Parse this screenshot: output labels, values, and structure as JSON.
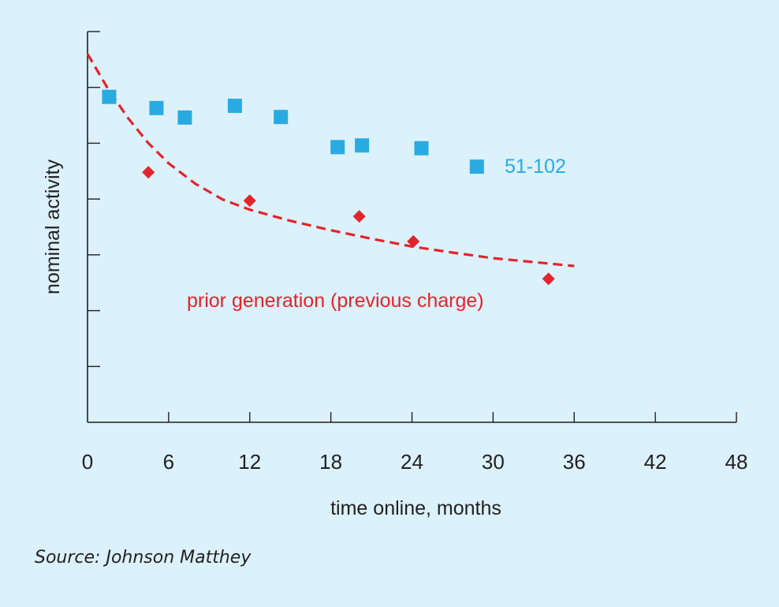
{
  "chart_data": {
    "type": "scatter",
    "title": "",
    "xlabel": "time online, months",
    "ylabel": "nominal activity",
    "xlim": [
      0,
      48
    ],
    "ylim": [
      0,
      7
    ],
    "x_ticks": [
      0,
      6,
      12,
      18,
      24,
      30,
      36,
      42,
      48
    ],
    "y_ticks": [
      1,
      2,
      3,
      4,
      5,
      6,
      7
    ],
    "y_tick_labels_shown": false,
    "grid": false,
    "series": [
      {
        "name": "51-102",
        "marker": "square",
        "color": "#29abe2",
        "points": [
          {
            "x": 1.6,
            "y": 5.83
          },
          {
            "x": 5.1,
            "y": 5.63
          },
          {
            "x": 7.2,
            "y": 5.46
          },
          {
            "x": 10.9,
            "y": 5.67
          },
          {
            "x": 14.3,
            "y": 5.47
          },
          {
            "x": 18.5,
            "y": 4.93
          },
          {
            "x": 20.3,
            "y": 4.96
          },
          {
            "x": 24.7,
            "y": 4.91
          },
          {
            "x": 28.8,
            "y": 4.58
          }
        ]
      },
      {
        "name": "prior generation (previous charge)",
        "marker": "diamond",
        "color": "#e3242b",
        "points": [
          {
            "x": 4.5,
            "y": 4.48
          },
          {
            "x": 12.0,
            "y": 3.97
          },
          {
            "x": 20.1,
            "y": 3.69
          },
          {
            "x": 24.1,
            "y": 3.24
          },
          {
            "x": 34.1,
            "y": 2.57
          }
        ],
        "trend_line": {
          "style": "dashed",
          "points": [
            {
              "x": 0,
              "y": 6.6
            },
            {
              "x": 1.5,
              "y": 5.98
            },
            {
              "x": 3,
              "y": 5.45
            },
            {
              "x": 4.5,
              "y": 5.0
            },
            {
              "x": 6,
              "y": 4.64
            },
            {
              "x": 8,
              "y": 4.27
            },
            {
              "x": 10,
              "y": 3.99
            },
            {
              "x": 12,
              "y": 3.81
            },
            {
              "x": 15,
              "y": 3.61
            },
            {
              "x": 18,
              "y": 3.44
            },
            {
              "x": 21,
              "y": 3.29
            },
            {
              "x": 24,
              "y": 3.15
            },
            {
              "x": 27,
              "y": 3.04
            },
            {
              "x": 30,
              "y": 2.94
            },
            {
              "x": 33,
              "y": 2.87
            },
            {
              "x": 36,
              "y": 2.8
            }
          ]
        }
      }
    ]
  },
  "source_note": "Source: Johnson Matthey"
}
